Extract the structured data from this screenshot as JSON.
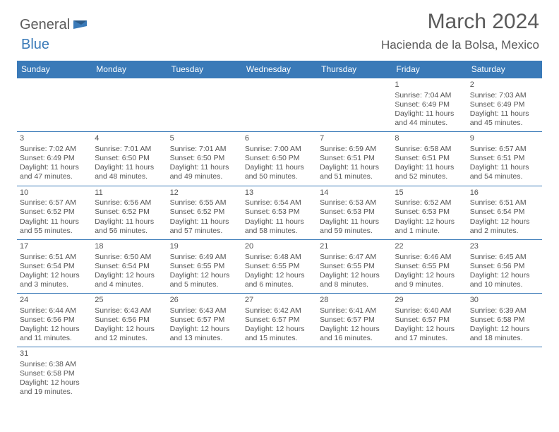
{
  "logo": {
    "text1": "General",
    "text2": "Blue"
  },
  "title": "March 2024",
  "location": "Hacienda de la Bolsa, Mexico",
  "colors": {
    "header_bg": "#3a7ab8",
    "header_text": "#ffffff",
    "border": "#3a7ab8",
    "body_text": "#555555",
    "title_text": "#5a5a5a",
    "background": "#ffffff"
  },
  "day_names": [
    "Sunday",
    "Monday",
    "Tuesday",
    "Wednesday",
    "Thursday",
    "Friday",
    "Saturday"
  ],
  "weeks": [
    [
      {
        "empty": true
      },
      {
        "empty": true
      },
      {
        "empty": true
      },
      {
        "empty": true
      },
      {
        "empty": true
      },
      {
        "day": "1",
        "sunrise": "Sunrise: 7:04 AM",
        "sunset": "Sunset: 6:49 PM",
        "daylight": "Daylight: 11 hours and 44 minutes."
      },
      {
        "day": "2",
        "sunrise": "Sunrise: 7:03 AM",
        "sunset": "Sunset: 6:49 PM",
        "daylight": "Daylight: 11 hours and 45 minutes."
      }
    ],
    [
      {
        "day": "3",
        "sunrise": "Sunrise: 7:02 AM",
        "sunset": "Sunset: 6:49 PM",
        "daylight": "Daylight: 11 hours and 47 minutes."
      },
      {
        "day": "4",
        "sunrise": "Sunrise: 7:01 AM",
        "sunset": "Sunset: 6:50 PM",
        "daylight": "Daylight: 11 hours and 48 minutes."
      },
      {
        "day": "5",
        "sunrise": "Sunrise: 7:01 AM",
        "sunset": "Sunset: 6:50 PM",
        "daylight": "Daylight: 11 hours and 49 minutes."
      },
      {
        "day": "6",
        "sunrise": "Sunrise: 7:00 AM",
        "sunset": "Sunset: 6:50 PM",
        "daylight": "Daylight: 11 hours and 50 minutes."
      },
      {
        "day": "7",
        "sunrise": "Sunrise: 6:59 AM",
        "sunset": "Sunset: 6:51 PM",
        "daylight": "Daylight: 11 hours and 51 minutes."
      },
      {
        "day": "8",
        "sunrise": "Sunrise: 6:58 AM",
        "sunset": "Sunset: 6:51 PM",
        "daylight": "Daylight: 11 hours and 52 minutes."
      },
      {
        "day": "9",
        "sunrise": "Sunrise: 6:57 AM",
        "sunset": "Sunset: 6:51 PM",
        "daylight": "Daylight: 11 hours and 54 minutes."
      }
    ],
    [
      {
        "day": "10",
        "sunrise": "Sunrise: 6:57 AM",
        "sunset": "Sunset: 6:52 PM",
        "daylight": "Daylight: 11 hours and 55 minutes."
      },
      {
        "day": "11",
        "sunrise": "Sunrise: 6:56 AM",
        "sunset": "Sunset: 6:52 PM",
        "daylight": "Daylight: 11 hours and 56 minutes."
      },
      {
        "day": "12",
        "sunrise": "Sunrise: 6:55 AM",
        "sunset": "Sunset: 6:52 PM",
        "daylight": "Daylight: 11 hours and 57 minutes."
      },
      {
        "day": "13",
        "sunrise": "Sunrise: 6:54 AM",
        "sunset": "Sunset: 6:53 PM",
        "daylight": "Daylight: 11 hours and 58 minutes."
      },
      {
        "day": "14",
        "sunrise": "Sunrise: 6:53 AM",
        "sunset": "Sunset: 6:53 PM",
        "daylight": "Daylight: 11 hours and 59 minutes."
      },
      {
        "day": "15",
        "sunrise": "Sunrise: 6:52 AM",
        "sunset": "Sunset: 6:53 PM",
        "daylight": "Daylight: 12 hours and 1 minute."
      },
      {
        "day": "16",
        "sunrise": "Sunrise: 6:51 AM",
        "sunset": "Sunset: 6:54 PM",
        "daylight": "Daylight: 12 hours and 2 minutes."
      }
    ],
    [
      {
        "day": "17",
        "sunrise": "Sunrise: 6:51 AM",
        "sunset": "Sunset: 6:54 PM",
        "daylight": "Daylight: 12 hours and 3 minutes."
      },
      {
        "day": "18",
        "sunrise": "Sunrise: 6:50 AM",
        "sunset": "Sunset: 6:54 PM",
        "daylight": "Daylight: 12 hours and 4 minutes."
      },
      {
        "day": "19",
        "sunrise": "Sunrise: 6:49 AM",
        "sunset": "Sunset: 6:55 PM",
        "daylight": "Daylight: 12 hours and 5 minutes."
      },
      {
        "day": "20",
        "sunrise": "Sunrise: 6:48 AM",
        "sunset": "Sunset: 6:55 PM",
        "daylight": "Daylight: 12 hours and 6 minutes."
      },
      {
        "day": "21",
        "sunrise": "Sunrise: 6:47 AM",
        "sunset": "Sunset: 6:55 PM",
        "daylight": "Daylight: 12 hours and 8 minutes."
      },
      {
        "day": "22",
        "sunrise": "Sunrise: 6:46 AM",
        "sunset": "Sunset: 6:55 PM",
        "daylight": "Daylight: 12 hours and 9 minutes."
      },
      {
        "day": "23",
        "sunrise": "Sunrise: 6:45 AM",
        "sunset": "Sunset: 6:56 PM",
        "daylight": "Daylight: 12 hours and 10 minutes."
      }
    ],
    [
      {
        "day": "24",
        "sunrise": "Sunrise: 6:44 AM",
        "sunset": "Sunset: 6:56 PM",
        "daylight": "Daylight: 12 hours and 11 minutes."
      },
      {
        "day": "25",
        "sunrise": "Sunrise: 6:43 AM",
        "sunset": "Sunset: 6:56 PM",
        "daylight": "Daylight: 12 hours and 12 minutes."
      },
      {
        "day": "26",
        "sunrise": "Sunrise: 6:43 AM",
        "sunset": "Sunset: 6:57 PM",
        "daylight": "Daylight: 12 hours and 13 minutes."
      },
      {
        "day": "27",
        "sunrise": "Sunrise: 6:42 AM",
        "sunset": "Sunset: 6:57 PM",
        "daylight": "Daylight: 12 hours and 15 minutes."
      },
      {
        "day": "28",
        "sunrise": "Sunrise: 6:41 AM",
        "sunset": "Sunset: 6:57 PM",
        "daylight": "Daylight: 12 hours and 16 minutes."
      },
      {
        "day": "29",
        "sunrise": "Sunrise: 6:40 AM",
        "sunset": "Sunset: 6:57 PM",
        "daylight": "Daylight: 12 hours and 17 minutes."
      },
      {
        "day": "30",
        "sunrise": "Sunrise: 6:39 AM",
        "sunset": "Sunset: 6:58 PM",
        "daylight": "Daylight: 12 hours and 18 minutes."
      }
    ],
    [
      {
        "day": "31",
        "sunrise": "Sunrise: 6:38 AM",
        "sunset": "Sunset: 6:58 PM",
        "daylight": "Daylight: 12 hours and 19 minutes."
      },
      {
        "empty": true
      },
      {
        "empty": true
      },
      {
        "empty": true
      },
      {
        "empty": true
      },
      {
        "empty": true
      },
      {
        "empty": true
      }
    ]
  ]
}
